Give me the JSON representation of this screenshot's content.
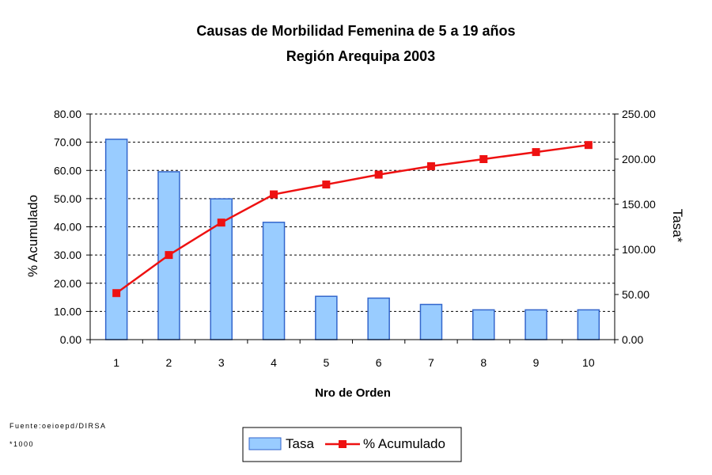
{
  "chart_data": {
    "type": "bar",
    "title": "Causas de Morbilidad Femenina de 5 a 19 años",
    "subtitle": "Región Arequipa 2003",
    "xlabel": "Nro de Orden",
    "ylabel_left": "% Acumulado",
    "ylabel_right": "Tasa*",
    "categories": [
      "1",
      "2",
      "3",
      "4",
      "5",
      "6",
      "7",
      "8",
      "9",
      "10"
    ],
    "ylim_left": [
      0,
      80
    ],
    "ylim_right": [
      0,
      250
    ],
    "left_ticks": [
      "0.00",
      "10.00",
      "20.00",
      "30.00",
      "40.00",
      "50.00",
      "60.00",
      "70.00",
      "80.00"
    ],
    "right_ticks": [
      "0.00",
      "50.00",
      "100.00",
      "150.00",
      "200.00",
      "250.00"
    ],
    "grid": true,
    "legend_placement": "bottom-center",
    "series": [
      {
        "name": "Tasa",
        "type": "bar",
        "axis": "right",
        "values": [
          222,
          186,
          156,
          130,
          48,
          46,
          39,
          33,
          33,
          33
        ],
        "color": "#99ccff",
        "edge_color": "#3366cc"
      },
      {
        "name": "% Acumulado",
        "type": "line",
        "axis": "left",
        "values": [
          16.5,
          30.0,
          41.5,
          51.5,
          55.0,
          58.5,
          61.5,
          64.0,
          66.5,
          69.0
        ],
        "color": "#ee1111"
      }
    ]
  },
  "footnotes": {
    "source": "Fuente:oeioepd/DIRSA",
    "unit": "*1000"
  }
}
